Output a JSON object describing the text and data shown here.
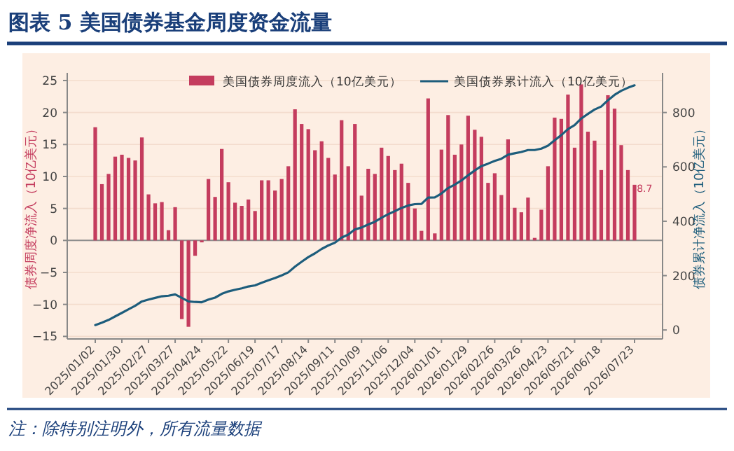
{
  "chart_data": {
    "type": "bar",
    "title": "图表 5  美国债券基金周度资金流量",
    "ylabel": "债券周度净流入（10亿美元）",
    "y2label": "债券累计净流入（10亿美元）",
    "annotations": [
      "注：除特别注明外，所有流量数据"
    ],
    "categories": [
      "2025/01/02",
      null,
      null,
      null,
      "2025/01/30",
      null,
      null,
      null,
      "2025/02/27",
      null,
      null,
      null,
      "2025/03/27",
      null,
      null,
      null,
      "2025/04/24",
      null,
      null,
      null,
      "2025/05/22",
      null,
      null,
      null,
      "2025/06/19",
      null,
      null,
      null,
      "2025/07/17",
      null,
      null,
      null,
      "2025/08/14",
      null,
      null,
      null,
      "2025/09/11",
      null,
      null,
      null,
      "2025/10/09",
      null,
      null,
      null,
      "2025/11/06",
      null,
      null,
      null,
      "2025/12/04",
      null,
      null,
      null,
      "2026/01/01",
      null,
      null,
      null,
      "2026/01/29",
      null,
      null,
      null,
      "2026/02/26",
      null,
      null,
      null,
      "2026/03/26",
      null,
      null,
      null,
      "2026/04/23",
      null,
      null,
      null,
      "2026/05/21",
      null,
      null,
      null,
      "2026/06/18",
      null,
      null,
      null,
      null,
      "2026/07/23"
    ],
    "series": [
      {
        "name": "美国债券周度流入（10亿美元）",
        "color": "#c43c5e",
        "values": [
          17.7,
          8.8,
          10.4,
          13.1,
          13.4,
          12.9,
          12.5,
          16.1,
          7.2,
          5.8,
          6.0,
          1.6,
          5.2,
          -12.3,
          -13.5,
          -2.4,
          -0.3,
          9.6,
          6.8,
          14.3,
          9.1,
          5.9,
          5.4,
          6.4,
          4.6,
          9.4,
          9.4,
          7.8,
          9.6,
          11.6,
          20.5,
          18.2,
          17.4,
          14.1,
          15.5,
          12.9,
          10.3,
          18.8,
          11.6,
          18.2,
          7.0,
          11.2,
          10.4,
          14.5,
          13.2,
          11.0,
          12.0,
          9.0,
          5.0,
          1.5,
          22.2,
          1.1,
          14.2,
          19.6,
          13.4,
          15.0,
          19.5,
          17.3,
          16.2,
          9.0,
          10.5,
          7.1,
          15.8,
          5.1,
          4.4,
          6.7,
          0.4,
          4.8,
          11.6,
          19.2,
          19.0,
          22.8,
          14.5,
          24.4,
          17.0,
          15.6,
          11.0,
          22.7,
          20.6,
          14.9,
          11.0,
          8.7
        ],
        "value_labels": [
          null,
          null,
          null,
          null,
          null,
          null,
          null,
          null,
          null,
          null,
          null,
          null,
          null,
          null,
          null,
          null,
          null,
          null,
          null,
          null,
          null,
          null,
          null,
          null,
          null,
          null,
          null,
          null,
          null,
          null,
          null,
          null,
          null,
          null,
          null,
          null,
          null,
          null,
          null,
          null,
          null,
          null,
          null,
          null,
          null,
          null,
          null,
          null,
          null,
          null,
          null,
          null,
          null,
          null,
          null,
          null,
          null,
          null,
          null,
          null,
          null,
          null,
          null,
          null,
          null,
          null,
          null,
          null,
          null,
          null,
          null,
          null,
          null,
          null,
          null,
          null,
          null,
          null,
          null,
          null,
          null,
          "8.7"
        ]
      },
      {
        "name": "美国债券累计流入（10亿美元）",
        "type": "line",
        "axis": "y2",
        "color": "#1d5d7c",
        "values": [
          18,
          27,
          37,
          50,
          63,
          76,
          89,
          105,
          112,
          118,
          124,
          126,
          131,
          118,
          105,
          103,
          102,
          112,
          119,
          133,
          142,
          148,
          153,
          160,
          164,
          174,
          183,
          191,
          201,
          212,
          233,
          251,
          268,
          282,
          298,
          311,
          321,
          340,
          351,
          370,
          377,
          388,
          398,
          413,
          426,
          437,
          449,
          458,
          463,
          464,
          487,
          488,
          502,
          522,
          535,
          550,
          569,
          587,
          603,
          612,
          622,
          630,
          645,
          650,
          655,
          662,
          662,
          667,
          678,
          698,
          717,
          739,
          754,
          778,
          795,
          811,
          822,
          845,
          865,
          880,
          891,
          900
        ]
      }
    ],
    "ylim": [
      -15.4,
      26.2
    ],
    "yticks": [
      -15,
      -10,
      -5,
      0,
      5,
      10,
      15,
      20,
      25
    ],
    "y2lim": [
      -33,
      946
    ],
    "y2ticks": [
      0,
      200,
      400,
      600,
      800
    ],
    "ref_lines": [
      {
        "axis": "y",
        "value": 0,
        "color": "#8c8c8c"
      }
    ],
    "grid": "y",
    "legend": "top"
  }
}
